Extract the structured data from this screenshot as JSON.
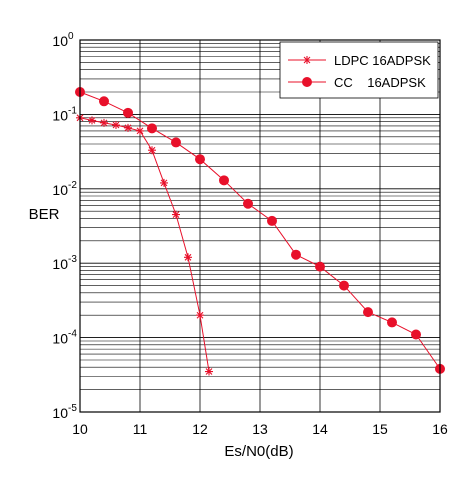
{
  "chart_data": {
    "type": "line",
    "xlabel": "Es/N0(dB)",
    "ylabel": "BER",
    "xlim": [
      10,
      16
    ],
    "ylim": [
      1e-05,
      1
    ],
    "yscale": "log",
    "grid": true,
    "legend_position": "top-right",
    "x_ticks": [
      "10",
      "11",
      "12",
      "13",
      "14",
      "15",
      "16"
    ],
    "y_ticks": [
      {
        "base": "10",
        "exp": "0",
        "value": 1
      },
      {
        "base": "10",
        "exp": "-1",
        "value": 0.1
      },
      {
        "base": "10",
        "exp": "-2",
        "value": 0.01
      },
      {
        "base": "10",
        "exp": "-3",
        "value": 0.001
      },
      {
        "base": "10",
        "exp": "-4",
        "value": 0.0001
      },
      {
        "base": "10",
        "exp": "-5",
        "value": 1e-05
      }
    ],
    "series": [
      {
        "name": "LDPC 16ADPSK",
        "color": "#e8102a",
        "marker": "star",
        "x": [
          10.0,
          10.2,
          10.4,
          10.6,
          10.8,
          11.0,
          11.2,
          11.4,
          11.6,
          11.8,
          12.0,
          12.15
        ],
        "y": [
          0.09,
          0.083,
          0.077,
          0.072,
          0.066,
          0.06,
          0.033,
          0.012,
          0.0045,
          0.0012,
          0.0002,
          3.5e-05
        ]
      },
      {
        "name": "CC    16ADPSK",
        "color": "#e8102a",
        "marker": "circle",
        "x": [
          10.0,
          10.4,
          10.8,
          11.2,
          11.6,
          12.0,
          12.4,
          12.8,
          13.2,
          13.6,
          14.0,
          14.4,
          14.8,
          15.2,
          15.6,
          16.0
        ],
        "y": [
          0.2,
          0.15,
          0.105,
          0.065,
          0.042,
          0.025,
          0.013,
          0.0063,
          0.0037,
          0.0013,
          0.0009,
          0.0005,
          0.00022,
          0.00016,
          0.00011,
          3.8e-05
        ]
      }
    ]
  }
}
